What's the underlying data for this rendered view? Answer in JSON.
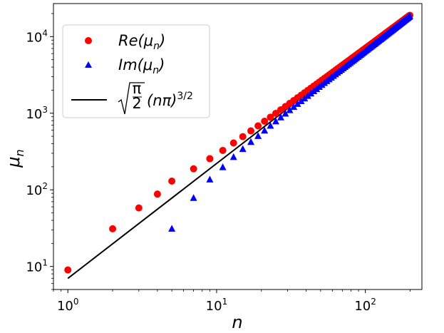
{
  "chart_data": {
    "type": "scatter",
    "title": "",
    "xlabel": "n",
    "ylabel": "μ",
    "ylabel_sub": "n",
    "xscale": "log",
    "yscale": "log",
    "xlim": [
      0.8,
      240
    ],
    "ylim": [
      5,
      27000
    ],
    "xticks": [
      {
        "value": 1,
        "base": "10",
        "exp": "0"
      },
      {
        "value": 10,
        "base": "10",
        "exp": "1"
      },
      {
        "value": 100,
        "base": "10",
        "exp": "2"
      }
    ],
    "yticks": [
      {
        "value": 10,
        "base": "10",
        "exp": "1"
      },
      {
        "value": 100,
        "base": "10",
        "exp": "2"
      },
      {
        "value": 1000,
        "base": "10",
        "exp": "3"
      },
      {
        "value": 10000,
        "base": "10",
        "exp": "4"
      }
    ],
    "legend_position": "top-left",
    "series": [
      {
        "name": "Re(μn)",
        "label_main": "Re(μ",
        "label_sub": "n",
        "label_close": ")",
        "marker": "circle",
        "color": "#ff0000",
        "x": [
          1,
          2,
          3,
          4,
          5,
          7,
          9,
          11,
          13,
          15,
          17,
          19,
          21,
          23,
          25,
          27,
          29,
          31,
          33,
          35,
          37,
          39,
          41,
          43,
          45,
          47,
          49,
          51,
          53,
          55,
          57,
          59,
          61,
          63,
          65,
          67,
          69,
          71,
          73,
          75,
          77,
          79,
          81,
          83,
          85,
          87,
          89,
          91,
          93,
          95,
          97,
          99,
          101,
          103,
          105,
          107,
          109,
          111,
          113,
          115,
          117,
          119,
          121,
          123,
          125,
          127,
          129,
          131,
          133,
          135,
          137,
          139,
          141,
          143,
          145,
          147,
          149,
          151,
          153,
          155,
          157,
          159,
          161,
          163,
          165,
          167,
          169,
          171,
          173,
          175,
          177,
          179,
          181,
          183,
          185,
          187,
          189,
          191,
          193,
          195,
          197,
          199
        ],
        "y": [
          9.0,
          31.0,
          58.0,
          88.0,
          130.0,
          188.0,
          255.0,
          327.0,
          409.0,
          495.0,
          588.0,
          684.0,
          786.0,
          888.0,
          996.0,
          1109.0,
          1224.0,
          1343.0,
          1465.0,
          1592.0,
          1719.0,
          1850.0,
          1984.0,
          2121.0,
          2261.0,
          2404.0,
          2549.0,
          2697.0,
          2848.0,
          3001.0,
          3157.0,
          3315.0,
          3475.0,
          3638.0,
          3803.0,
          3971.0,
          4141.0,
          4312.0,
          4486.0,
          4662.0,
          4840.0,
          5021.0,
          5203.0,
          5387.0,
          5574.0,
          5762.0,
          5952.0,
          6144.0,
          6338.0,
          6534.0,
          6732.0,
          6932.0,
          7133.0,
          7336.0,
          7541.0,
          7748.0,
          7957.0,
          8167.0,
          8379.0,
          8593.0,
          8809.0,
          9026.0,
          9245.0,
          9466.0,
          9688.0,
          9912.0,
          10138.0,
          10365.0,
          10594.0,
          10824.0,
          11056.0,
          11290.0,
          11525.0,
          11762.0,
          12000.0,
          12240.0,
          12481.0,
          12724.0,
          12968.0,
          13214.0,
          13461.0,
          13710.0,
          13960.0,
          14212.0,
          14465.0,
          14720.0,
          14976.0,
          15233.0,
          15492.0,
          15752.0,
          16014.0,
          16277.0,
          16541.0,
          16807.0,
          17074.0,
          17342.0,
          17612.0,
          17883.0,
          18156.0,
          18430.0,
          18705.0,
          18982.0
        ]
      },
      {
        "name": "Im(μn)",
        "label_main": "Im(μ",
        "label_sub": "n",
        "label_close": ")",
        "marker": "triangle",
        "color": "#0000ff",
        "x": [
          5,
          7,
          9,
          11,
          13,
          15,
          17,
          19,
          21,
          23,
          25,
          27,
          29,
          31,
          33,
          35,
          37,
          39,
          41,
          43,
          45,
          47,
          49,
          51,
          53,
          55,
          57,
          59,
          61,
          63,
          65,
          67,
          69,
          71,
          73,
          75,
          77,
          79,
          81,
          83,
          85,
          87,
          89,
          91,
          93,
          95,
          97,
          99,
          101,
          103,
          105,
          107,
          109,
          111,
          113,
          115,
          117,
          119,
          121,
          123,
          125,
          127,
          129,
          131,
          133,
          135,
          137,
          139,
          141,
          143,
          145,
          147,
          149,
          151,
          153,
          155,
          157,
          159,
          161,
          163,
          165,
          167,
          169,
          171,
          173,
          175,
          177,
          179,
          181,
          183,
          185,
          187,
          189,
          191,
          193,
          195,
          197,
          199
        ],
        "y": [
          31.0,
          78.0,
          136.0,
          197.0,
          267.0,
          340.0,
          420.0,
          503.0,
          592.0,
          684.0,
          781.0,
          880.0,
          985.0,
          1092.0,
          1203.0,
          1317.0,
          1434.0,
          1554.0,
          1677.0,
          1803.0,
          1932.0,
          2063.0,
          2198.0,
          2335.0,
          2474.0,
          2617.0,
          2762.0,
          2909.0,
          3059.0,
          3211.0,
          3366.0,
          3523.0,
          3683.0,
          3845.0,
          4009.0,
          4176.0,
          4345.0,
          4516.0,
          4689.0,
          4865.0,
          5043.0,
          5223.0,
          5405.0,
          5590.0,
          5776.0,
          5965.0,
          6156.0,
          6349.0,
          6544.0,
          6741.0,
          6940.0,
          7141.0,
          7344.0,
          7549.0,
          7756.0,
          7965.0,
          8176.0,
          8389.0,
          8604.0,
          8821.0,
          9040.0,
          9261.0,
          9483.0,
          9708.0,
          9934.0,
          10162.0,
          10392.0,
          10624.0,
          10858.0,
          11093.0,
          11331.0,
          11570.0,
          11811.0,
          12053.0,
          12298.0,
          12544.0,
          12792.0,
          13042.0,
          13293.0,
          13546.0,
          13801.0,
          14058.0,
          14316.0,
          14576.0,
          14838.0,
          15102.0,
          15367.0,
          15634.0,
          15902.0,
          16172.0,
          16444.0,
          16717.0,
          16992.0,
          17268.0,
          17547.0,
          17826.0,
          18108.0,
          18391.0
        ]
      },
      {
        "name": "sqrt(π/2)(nπ)^(3/2)",
        "marker": "line",
        "color": "#000000",
        "x": [
          1,
          200
        ],
        "y": [
          6.98,
          19745.0
        ],
        "label_num": "π",
        "label_den": "2",
        "label_main": "(nπ)",
        "label_sup": "3/2"
      }
    ]
  }
}
